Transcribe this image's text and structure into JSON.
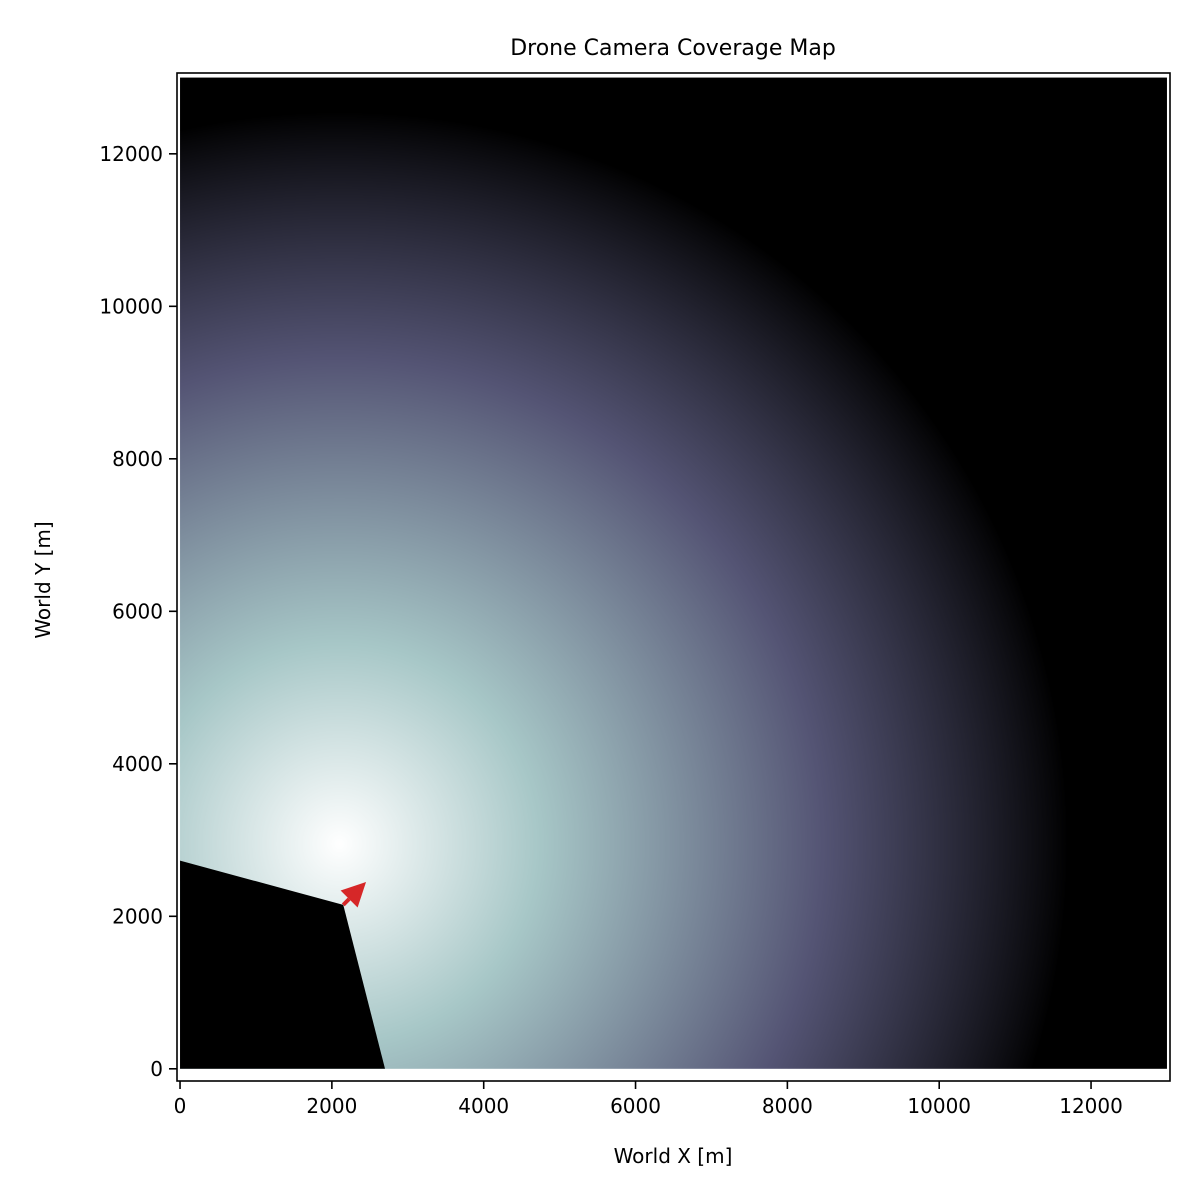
{
  "chart_data": {
    "type": "heatmap",
    "title": "Drone Camera Coverage Map",
    "xlabel": "World X [m]",
    "ylabel": "World Y [m]",
    "xlim": [
      -40,
      13040
    ],
    "ylim": [
      -160,
      13060
    ],
    "extent": [
      0,
      13000,
      0,
      13000
    ],
    "xticks": [
      0,
      2000,
      4000,
      6000,
      8000,
      10000,
      12000
    ],
    "yticks": [
      0,
      2000,
      4000,
      6000,
      8000,
      10000,
      12000
    ],
    "xtick_labels": [
      "0",
      "2000",
      "4000",
      "6000",
      "8000",
      "10000",
      "12000"
    ],
    "ytick_labels": [
      "0",
      "2000",
      "4000",
      "6000",
      "8000",
      "10000",
      "12000"
    ],
    "grid": false,
    "colormap": "bone",
    "coverage": {
      "center": [
        2100,
        2950
      ],
      "radius": 9600,
      "falloff_edge": 9600
    },
    "blind_zone_polygon": [
      [
        0,
        0
      ],
      [
        2700,
        0
      ],
      [
        2150,
        2150
      ],
      [
        0,
        2730
      ]
    ],
    "drone": {
      "position": [
        2150,
        2150
      ],
      "heading_to": [
        2450,
        2450
      ],
      "color": "#d62728"
    },
    "colors": {
      "background": "#000000",
      "bone_stops": [
        "#000000",
        "#545474",
        "#a7c7c7",
        "#ffffff"
      ]
    }
  }
}
